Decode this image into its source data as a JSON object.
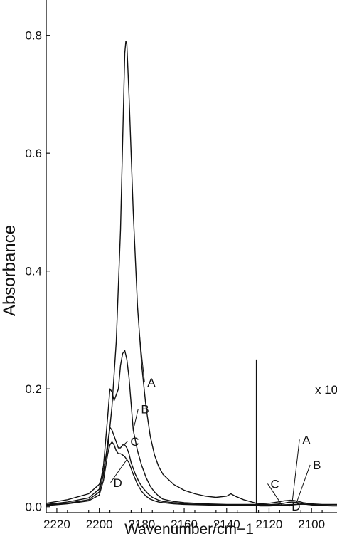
{
  "chart_data": {
    "type": "line",
    "xlabel": "Wavenumber/cm−1",
    "ylabel": "Absorbance",
    "x_reversed": true,
    "xlim": [
      2225,
      2088
    ],
    "ylim": [
      -0.01,
      0.86
    ],
    "x_ticks": [
      2220,
      2200,
      2180,
      2160,
      2140,
      2120,
      2100
    ],
    "y_ticks": [
      0.0,
      0.2,
      0.4,
      0.6,
      0.8
    ],
    "y_tick_labels": [
      "0.0",
      "0.2",
      "0.4",
      "0.6",
      "0.8"
    ],
    "break_at": 2126,
    "inset_scale_label": "x 10",
    "series": [
      {
        "name": "A",
        "x": [
          2225,
          2215,
          2205,
          2200,
          2198,
          2196,
          2194,
          2192,
          2190,
          2189,
          2188,
          2187.5,
          2187,
          2186,
          2184,
          2182,
          2180,
          2178,
          2176,
          2174,
          2172,
          2170,
          2165,
          2160,
          2155,
          2150,
          2145,
          2140,
          2138,
          2136,
          2132,
          2126,
          2124,
          2120,
          2116,
          2113,
          2110,
          2108,
          2106,
          2104,
          2102,
          2100,
          2095,
          2090,
          2088
        ],
        "y": [
          0.006,
          0.012,
          0.022,
          0.038,
          0.06,
          0.1,
          0.17,
          0.28,
          0.47,
          0.62,
          0.77,
          0.79,
          0.785,
          0.7,
          0.5,
          0.34,
          0.24,
          0.17,
          0.12,
          0.088,
          0.068,
          0.055,
          0.038,
          0.028,
          0.022,
          0.018,
          0.016,
          0.018,
          0.022,
          0.018,
          0.012,
          0.006,
          0.005,
          0.006,
          0.008,
          0.01,
          0.011,
          0.0105,
          0.009,
          0.007,
          0.006,
          0.005,
          0.004,
          0.004,
          0.004
        ]
      },
      {
        "name": "B",
        "x": [
          2225,
          2215,
          2205,
          2200,
          2198,
          2196,
          2195,
          2194,
          2193,
          2191,
          2190,
          2189,
          2188,
          2187,
          2186,
          2185,
          2184,
          2182,
          2180,
          2178,
          2176,
          2174,
          2172,
          2170,
          2165,
          2160,
          2150,
          2140,
          2130,
          2126,
          2122,
          2120,
          2116,
          2113,
          2111,
          2109,
          2107,
          2105,
          2103,
          2101,
          2099,
          2095,
          2090,
          2088
        ],
        "y": [
          0.004,
          0.008,
          0.015,
          0.03,
          0.07,
          0.155,
          0.2,
          0.195,
          0.18,
          0.2,
          0.24,
          0.26,
          0.265,
          0.25,
          0.22,
          0.175,
          0.13,
          0.095,
          0.07,
          0.05,
          0.035,
          0.025,
          0.018,
          0.013,
          0.009,
          0.007,
          0.005,
          0.004,
          0.004,
          0.004,
          0.004,
          0.0035,
          0.0045,
          0.006,
          0.0075,
          0.008,
          0.0075,
          0.006,
          0.0045,
          0.0035,
          0.003,
          0.0025,
          0.002,
          0.002
        ]
      },
      {
        "name": "C",
        "x": [
          2225,
          2215,
          2205,
          2200,
          2198,
          2196,
          2195,
          2194,
          2193,
          2192,
          2191,
          2190,
          2189,
          2188,
          2187,
          2186,
          2185,
          2183,
          2181,
          2179,
          2177,
          2175,
          2172,
          2170,
          2165,
          2160,
          2150,
          2140,
          2130,
          2126,
          2124,
          2120,
          2116,
          2112,
          2108,
          2104,
          2102,
          2100,
          2098,
          2095,
          2090,
          2088
        ],
        "y": [
          0.003,
          0.006,
          0.012,
          0.025,
          0.055,
          0.11,
          0.135,
          0.13,
          0.12,
          0.11,
          0.1,
          0.1,
          0.105,
          0.105,
          0.1,
          0.09,
          0.075,
          0.055,
          0.04,
          0.03,
          0.022,
          0.016,
          0.011,
          0.009,
          0.007,
          0.005,
          0.004,
          0.003,
          0.003,
          0.003,
          0.0025,
          0.0025,
          0.003,
          0.0035,
          0.004,
          0.0045,
          0.0045,
          0.004,
          0.003,
          0.0025,
          0.002,
          0.002
        ]
      },
      {
        "name": "D",
        "x": [
          2225,
          2215,
          2205,
          2200,
          2198,
          2196,
          2195,
          2194,
          2193,
          2192,
          2191,
          2190,
          2189,
          2188,
          2186,
          2184,
          2182,
          2180,
          2178,
          2176,
          2174,
          2172,
          2170,
          2165,
          2160,
          2150,
          2140,
          2130,
          2126,
          2124,
          2120,
          2116,
          2112,
          2108,
          2105,
          2102,
          2100,
          2098,
          2095,
          2090,
          2088
        ],
        "y": [
          0.002,
          0.005,
          0.01,
          0.02,
          0.045,
          0.09,
          0.105,
          0.11,
          0.105,
          0.095,
          0.09,
          0.09,
          0.088,
          0.085,
          0.075,
          0.055,
          0.038,
          0.026,
          0.018,
          0.013,
          0.01,
          0.008,
          0.007,
          0.005,
          0.004,
          0.003,
          0.002,
          0.002,
          0.002,
          0.0015,
          0.0015,
          0.002,
          0.0025,
          0.0035,
          0.0045,
          0.004,
          0.003,
          0.0025,
          0.002,
          0.0015,
          0.0015
        ]
      }
    ],
    "annotations": [
      {
        "text": "A",
        "curve": "A",
        "at_x": 2181,
        "label_x": 2176,
        "label_y": 0.205
      },
      {
        "text": "B",
        "curve": "B",
        "at_x": 2184,
        "label_x": 2179,
        "label_y": 0.16
      },
      {
        "text": "C",
        "curve": "C",
        "at_x": 2188.5,
        "label_x": 2184,
        "label_y": 0.105
      },
      {
        "text": "D",
        "curve": "D",
        "at_x": 2187,
        "label_x": 2192,
        "label_y": 0.035
      },
      {
        "text": "A",
        "curve": "A",
        "at_x": 2109,
        "label_x": 2103,
        "label_y": 0.108
      },
      {
        "text": "B",
        "curve": "B",
        "at_x": 2107,
        "label_x": 2098,
        "label_y": 0.065
      },
      {
        "text": "C",
        "curve": "C",
        "at_x": 2114,
        "label_x": 2118,
        "label_y": 0.033
      },
      {
        "text": "D",
        "curve": "D",
        "at_x": 2108,
        "label_x": 2108,
        "label_y": -0.005
      }
    ]
  }
}
